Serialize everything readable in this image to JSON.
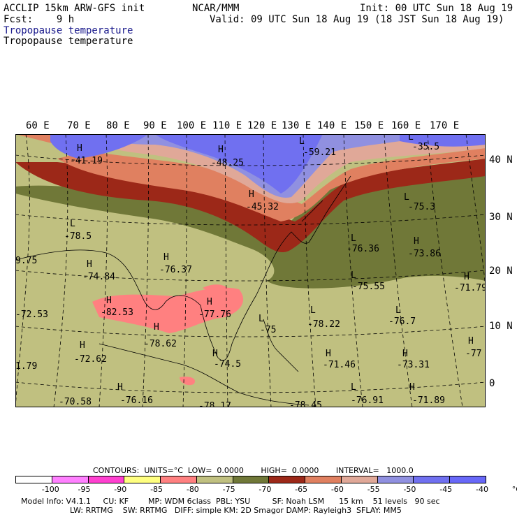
{
  "header": {
    "model": "ACCLIP 15km ARW-GFS init",
    "center": "NCAR/MMM",
    "init": "Init: 00 UTC Sun 18 Aug 19",
    "fcst": "Fcst:    9 h",
    "valid": "Valid: 09 UTC Sun 18 Aug 19 (18 JST Sun 18 Aug 19)",
    "field1": "Tropopause temperature",
    "field2": "Tropopause temperature"
  },
  "lon_labels": [
    "60 E",
    "70 E",
    "80 E",
    "90 E",
    "100 E",
    "110 E",
    "120 E",
    "130 E",
    "140 E",
    "150 E",
    "160 E",
    "170 E"
  ],
  "lat_labels": [
    "40 N",
    "30 N",
    "20 N",
    "10 N",
    "0"
  ],
  "map_labels": [
    {
      "t": "H"
    },
    {
      "t": "-41.19"
    },
    {
      "t": "H"
    },
    {
      "t": "-48.25"
    },
    {
      "t": "L"
    },
    {
      "t": "-59.21"
    },
    {
      "t": "L"
    },
    {
      "t": "-35.5"
    },
    {
      "t": "H"
    },
    {
      "t": "-45.32"
    },
    {
      "t": "L"
    },
    {
      "t": "-75.3"
    },
    {
      "t": "L"
    },
    {
      "t": "-78.5"
    },
    {
      "t": "9.75"
    },
    {
      "t": "H"
    },
    {
      "t": "-76.37"
    },
    {
      "t": "H"
    },
    {
      "t": "-74.84"
    },
    {
      "t": "L"
    },
    {
      "t": "-76.36"
    },
    {
      "t": "H"
    },
    {
      "t": "-73.86"
    },
    {
      "t": "L"
    },
    {
      "t": "-75.55"
    },
    {
      "t": "H"
    },
    {
      "t": "-71.79"
    },
    {
      "t": "H"
    },
    {
      "t": "-82.53"
    },
    {
      "t": "-72.53"
    },
    {
      "t": "H"
    },
    {
      "t": "-77.76"
    },
    {
      "t": "L"
    },
    {
      "t": "-75"
    },
    {
      "t": "L"
    },
    {
      "t": "-78.22"
    },
    {
      "t": "L"
    },
    {
      "t": "-76.7"
    },
    {
      "t": "H"
    },
    {
      "t": "-78.62"
    },
    {
      "t": "H"
    },
    {
      "t": "-72.62"
    },
    {
      "t": "H"
    },
    {
      "t": "-74.5"
    },
    {
      "t": "H"
    },
    {
      "t": "-71.46"
    },
    {
      "t": "H"
    },
    {
      "t": "-73.31"
    },
    {
      "t": "H"
    },
    {
      "t": "-77"
    },
    {
      "t": "1.79"
    },
    {
      "t": "H"
    },
    {
      "t": "-76.16"
    },
    {
      "t": "L"
    },
    {
      "t": "-76.91"
    },
    {
      "t": "H"
    },
    {
      "t": "-71.89"
    },
    {
      "t": "-70.58"
    },
    {
      "t": "-78.17"
    },
    {
      "t": "-78.45"
    }
  ],
  "contours_line": "CONTOURS:  UNITS=°C  LOW=  0.0000       HIGH=  0.0000       INTERVAL=   1000.0",
  "colorbar": {
    "colors": [
      "#ffffff",
      "#ff80ff",
      "#ff40d0",
      "#ffff80",
      "#ff8080",
      "#c0c080",
      "#707838",
      "#9c2818",
      "#e08060",
      "#e0a898",
      "#9090e0",
      "#7070f0",
      "#6868f8"
    ],
    "labels": [
      "-100",
      "-95",
      "-90",
      "-85",
      "-80",
      "-75",
      "-70",
      "-65",
      "-60",
      "-55",
      "-50",
      "-45",
      "-40",
      "°C"
    ]
  },
  "footer1": "Model Info: V4.1.1     CU: KF        MP: WDM 6class  PBL: YSU         SF: Noah LSM      15 km    51 levels   90 sec",
  "footer2": "LW: RRTMG    SW: RRTMG   DIFF: simple KM: 2D Smagor DAMP: Rayleigh3  SFLAY: MM5"
}
